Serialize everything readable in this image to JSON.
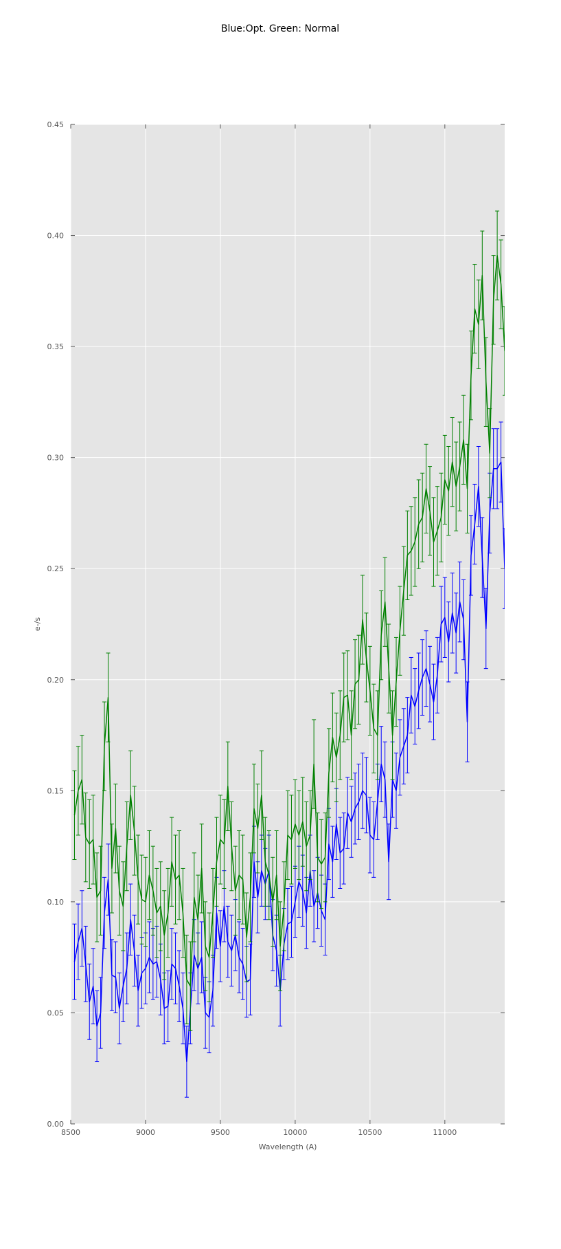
{
  "chart_data": {
    "type": "line",
    "title": "Blue:Opt. Green: Normal",
    "xlabel": "Wavelength (A)",
    "ylabel": "e-/s",
    "xlim": [
      8500,
      11400
    ],
    "ylim": [
      0.0,
      0.45
    ],
    "xticks": [
      8500,
      9000,
      9500,
      10000,
      10500,
      11000
    ],
    "xtick_labels": [
      "8500",
      "9000",
      "9500",
      "10000",
      "10500",
      "11000"
    ],
    "yticks": [
      0.0,
      0.05,
      0.1,
      0.15,
      0.2,
      0.25,
      0.3,
      0.35,
      0.4,
      0.45
    ],
    "ytick_labels": [
      "0.00",
      "0.05",
      "0.10",
      "0.15",
      "0.20",
      "0.25",
      "0.30",
      "0.35",
      "0.40",
      "0.45"
    ],
    "grid": true,
    "background": "#e5e5e5",
    "x": [
      8525,
      8550,
      8575,
      8600,
      8625,
      8650,
      8675,
      8700,
      8725,
      8750,
      8775,
      8800,
      8825,
      8850,
      8875,
      8900,
      8925,
      8950,
      8975,
      9000,
      9025,
      9050,
      9075,
      9100,
      9125,
      9150,
      9175,
      9200,
      9225,
      9250,
      9275,
      9300,
      9325,
      9350,
      9375,
      9400,
      9425,
      9450,
      9475,
      9500,
      9525,
      9550,
      9575,
      9600,
      9625,
      9650,
      9675,
      9700,
      9725,
      9750,
      9775,
      9800,
      9825,
      9850,
      9875,
      9900,
      9925,
      9950,
      9975,
      10000,
      10025,
      10050,
      10075,
      10100,
      10125,
      10150,
      10175,
      10200,
      10225,
      10250,
      10275,
      10300,
      10325,
      10350,
      10375,
      10400,
      10425,
      10450,
      10475,
      10500,
      10525,
      10550,
      10575,
      10600,
      10625,
      10650,
      10675,
      10700,
      10725,
      10750,
      10775,
      10800,
      10825,
      10850,
      10875,
      10900,
      10925,
      10950,
      10975,
      11000,
      11025,
      11050,
      11075,
      11100,
      11125,
      11150,
      11175,
      11200,
      11225,
      11250,
      11275,
      11300,
      11325,
      11350,
      11375,
      11400
    ],
    "series": [
      {
        "color": "#0000ff",
        "values": [
          0.073,
          0.082,
          0.088,
          0.072,
          0.055,
          0.062,
          0.044,
          0.05,
          0.095,
          0.11,
          0.067,
          0.066,
          0.052,
          0.062,
          0.07,
          0.092,
          0.078,
          0.06,
          0.068,
          0.07,
          0.075,
          0.072,
          0.073,
          0.065,
          0.052,
          0.053,
          0.072,
          0.07,
          0.062,
          0.052,
          0.028,
          0.052,
          0.076,
          0.07,
          0.075,
          0.05,
          0.048,
          0.06,
          0.095,
          0.08,
          0.098,
          0.082,
          0.078,
          0.085,
          0.075,
          0.072,
          0.064,
          0.065,
          0.118,
          0.102,
          0.114,
          0.108,
          0.114,
          0.085,
          0.078,
          0.06,
          0.081,
          0.09,
          0.091,
          0.1,
          0.109,
          0.105,
          0.095,
          0.114,
          0.098,
          0.104,
          0.096,
          0.092,
          0.126,
          0.118,
          0.135,
          0.122,
          0.124,
          0.14,
          0.136,
          0.142,
          0.145,
          0.15,
          0.148,
          0.13,
          0.128,
          0.145,
          0.162,
          0.155,
          0.118,
          0.155,
          0.15,
          0.165,
          0.17,
          0.175,
          0.193,
          0.188,
          0.195,
          0.201,
          0.205,
          0.198,
          0.19,
          0.202,
          0.225,
          0.228,
          0.217,
          0.23,
          0.221,
          0.235,
          0.227,
          0.181,
          0.256,
          0.27,
          0.287,
          0.255,
          0.223,
          0.275,
          0.295,
          0.295,
          0.298,
          0.25
        ],
        "errors": [
          0.017,
          0.017,
          0.017,
          0.017,
          0.017,
          0.017,
          0.016,
          0.016,
          0.016,
          0.016,
          0.016,
          0.016,
          0.016,
          0.016,
          0.016,
          0.016,
          0.016,
          0.016,
          0.016,
          0.016,
          0.016,
          0.016,
          0.016,
          0.016,
          0.016,
          0.016,
          0.016,
          0.016,
          0.016,
          0.016,
          0.016,
          0.016,
          0.016,
          0.016,
          0.016,
          0.016,
          0.016,
          0.016,
          0.016,
          0.016,
          0.016,
          0.016,
          0.016,
          0.016,
          0.016,
          0.016,
          0.016,
          0.016,
          0.016,
          0.016,
          0.016,
          0.016,
          0.016,
          0.016,
          0.016,
          0.016,
          0.016,
          0.016,
          0.016,
          0.016,
          0.016,
          0.016,
          0.016,
          0.016,
          0.016,
          0.016,
          0.016,
          0.016,
          0.016,
          0.016,
          0.016,
          0.016,
          0.016,
          0.016,
          0.016,
          0.016,
          0.017,
          0.017,
          0.017,
          0.017,
          0.017,
          0.017,
          0.017,
          0.017,
          0.017,
          0.017,
          0.017,
          0.017,
          0.017,
          0.017,
          0.017,
          0.017,
          0.017,
          0.017,
          0.017,
          0.017,
          0.017,
          0.017,
          0.017,
          0.018,
          0.018,
          0.018,
          0.018,
          0.018,
          0.018,
          0.018,
          0.018,
          0.018,
          0.018,
          0.018,
          0.018,
          0.018,
          0.018,
          0.018,
          0.018,
          0.018
        ]
      },
      {
        "color": "#008000",
        "values": [
          0.139,
          0.15,
          0.155,
          0.129,
          0.126,
          0.128,
          0.102,
          0.105,
          0.17,
          0.192,
          0.115,
          0.133,
          0.105,
          0.098,
          0.125,
          0.148,
          0.132,
          0.11,
          0.101,
          0.1,
          0.112,
          0.105,
          0.095,
          0.098,
          0.085,
          0.095,
          0.118,
          0.11,
          0.112,
          0.095,
          0.065,
          0.062,
          0.102,
          0.092,
          0.115,
          0.08,
          0.075,
          0.095,
          0.118,
          0.128,
          0.126,
          0.152,
          0.125,
          0.105,
          0.112,
          0.11,
          0.084,
          0.102,
          0.142,
          0.133,
          0.148,
          0.118,
          0.112,
          0.1,
          0.112,
          0.08,
          0.098,
          0.13,
          0.128,
          0.135,
          0.13,
          0.136,
          0.125,
          0.13,
          0.162,
          0.12,
          0.117,
          0.12,
          0.158,
          0.174,
          0.165,
          0.175,
          0.192,
          0.193,
          0.175,
          0.198,
          0.2,
          0.227,
          0.21,
          0.195,
          0.178,
          0.175,
          0.22,
          0.235,
          0.205,
          0.175,
          0.199,
          0.222,
          0.24,
          0.256,
          0.258,
          0.262,
          0.27,
          0.273,
          0.286,
          0.276,
          0.262,
          0.267,
          0.273,
          0.29,
          0.285,
          0.298,
          0.287,
          0.296,
          0.308,
          0.286,
          0.337,
          0.367,
          0.36,
          0.382,
          0.334,
          0.302,
          0.371,
          0.391,
          0.378,
          0.348
        ],
        "errors": [
          0.02,
          0.02,
          0.02,
          0.02,
          0.02,
          0.02,
          0.02,
          0.02,
          0.02,
          0.02,
          0.02,
          0.02,
          0.02,
          0.02,
          0.02,
          0.02,
          0.02,
          0.02,
          0.02,
          0.02,
          0.02,
          0.02,
          0.02,
          0.02,
          0.02,
          0.02,
          0.02,
          0.02,
          0.02,
          0.02,
          0.02,
          0.02,
          0.02,
          0.02,
          0.02,
          0.02,
          0.02,
          0.02,
          0.02,
          0.02,
          0.02,
          0.02,
          0.02,
          0.02,
          0.02,
          0.02,
          0.02,
          0.02,
          0.02,
          0.02,
          0.02,
          0.02,
          0.02,
          0.02,
          0.02,
          0.02,
          0.02,
          0.02,
          0.02,
          0.02,
          0.02,
          0.02,
          0.02,
          0.02,
          0.02,
          0.02,
          0.02,
          0.02,
          0.02,
          0.02,
          0.02,
          0.02,
          0.02,
          0.02,
          0.02,
          0.02,
          0.02,
          0.02,
          0.02,
          0.02,
          0.02,
          0.02,
          0.02,
          0.02,
          0.02,
          0.02,
          0.02,
          0.02,
          0.02,
          0.02,
          0.02,
          0.02,
          0.02,
          0.02,
          0.02,
          0.02,
          0.02,
          0.02,
          0.02,
          0.02,
          0.02,
          0.02,
          0.02,
          0.02,
          0.02,
          0.02,
          0.02,
          0.02,
          0.02,
          0.02,
          0.02,
          0.02,
          0.02,
          0.02,
          0.02,
          0.02
        ]
      }
    ]
  }
}
